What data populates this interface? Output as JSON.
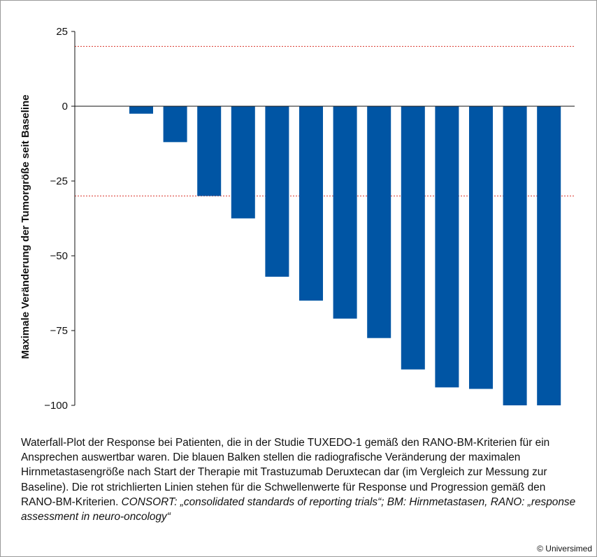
{
  "chart_data": {
    "type": "bar",
    "ylabel": "Maximale Veränderung der Tumorgröße seit Baseline",
    "ylim": [
      -100,
      25
    ],
    "yticks": [
      25,
      0,
      -25,
      -50,
      -75,
      -100
    ],
    "ytick_labels": [
      "25",
      "0",
      "−25",
      "−50",
      "−75",
      "−100"
    ],
    "values": [
      -2.5,
      -12,
      -30,
      -37.5,
      -57,
      -65,
      -71,
      -77.5,
      -88,
      -94,
      -94.5,
      -100,
      -100
    ],
    "bar_color": "#0055a4",
    "thresholds": [
      {
        "value": 20,
        "color": "#d9342b",
        "style": "dotted"
      },
      {
        "value": -30,
        "color": "#d9342b",
        "style": "dotted"
      }
    ],
    "grid": false
  },
  "caption": {
    "text": "Waterfall-Plot der Response bei Patienten, die in der Studie TUXEDO-1 gemäß den RANO-BM-Kriterien für ein Ansprechen auswertbar waren. Die blauen Balken stellen die radiografische Veränderung der maximalen Hirnmetastasengröße nach Start der Therapie mit Trastuzumab Deruxtecan dar (im Vergleich zur Messung zur Baseline). Die rot strichlierten Linien stehen für die Schwellenwerte für Response und Progression gemäß den RANO-BM-Kriterien.",
    "italic": "CONSORT: „consolidated standards of reporting trials“; BM: Hirnmetastasen, RANO: „response assessment in neuro-oncology“"
  },
  "copyright": "© Universimed"
}
